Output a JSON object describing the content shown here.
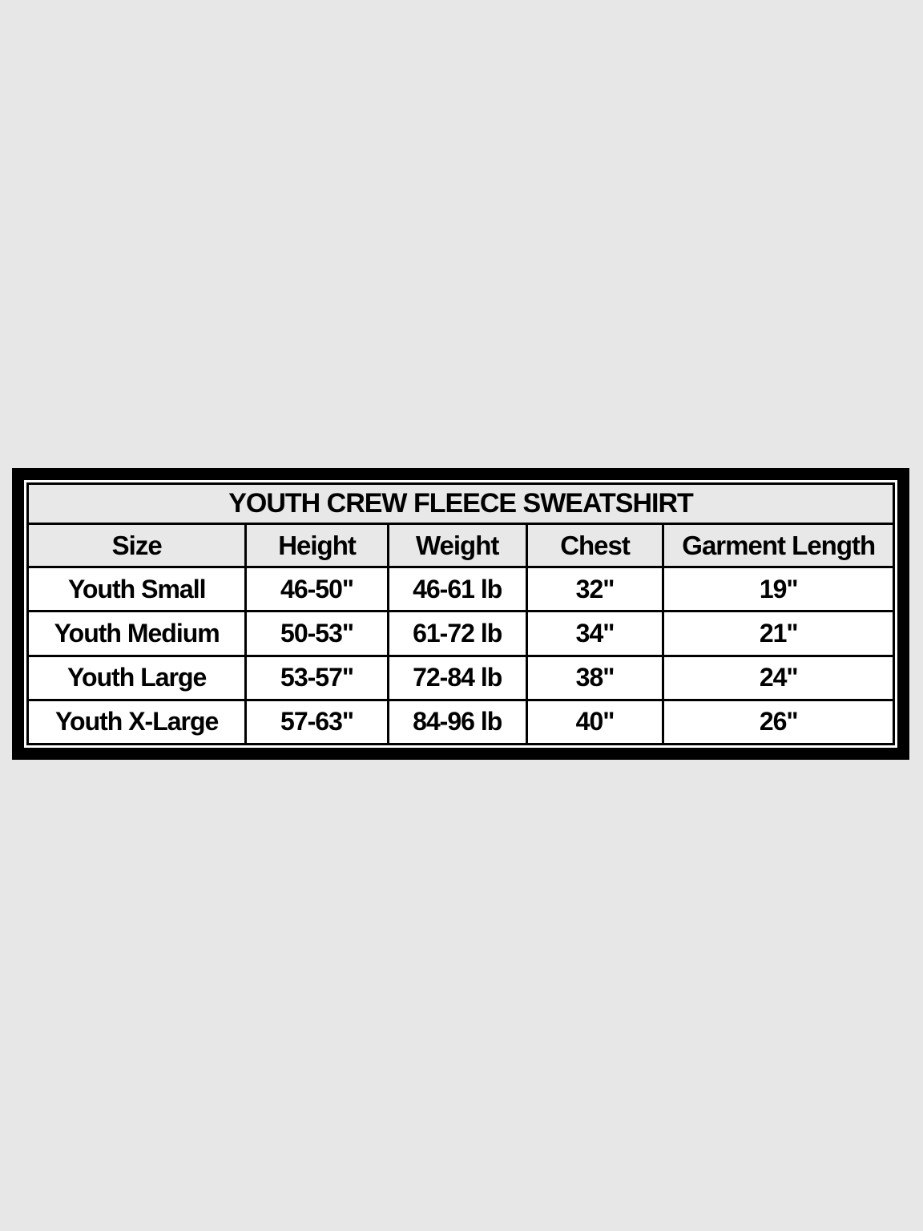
{
  "page": {
    "background_color": "#e7e7e7"
  },
  "table": {
    "title": "YOUTH CREW FLEECE SWEATSHIRT",
    "columns": [
      "Size",
      "Height",
      "Weight",
      "Chest",
      "Garment Length"
    ],
    "rows": [
      [
        "Youth Small",
        "46-50\"",
        "46-61 lb",
        "32\"",
        "19\""
      ],
      [
        "Youth Medium",
        "50-53\"",
        "61-72 lb",
        "34\"",
        "21\""
      ],
      [
        "Youth Large",
        "53-57\"",
        "72-84 lb",
        "38\"",
        "24\""
      ],
      [
        "Youth X-Large",
        "57-63\"",
        "84-96 lb",
        "40\"",
        "26\""
      ]
    ],
    "colors": {
      "frame_border": "#000000",
      "cell_border": "#000000",
      "title_bg": "#e8e8e8",
      "header_bg": "#e8e8e8",
      "row_bg": "#ffffff",
      "text": "#000000"
    }
  }
}
